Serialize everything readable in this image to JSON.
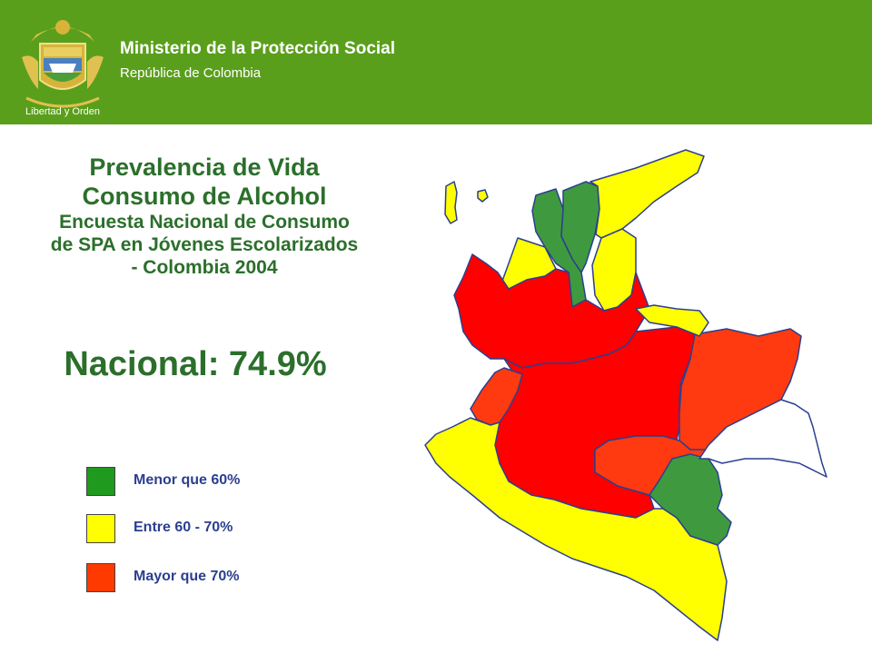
{
  "header": {
    "ministry": "Ministerio de la Protección Social",
    "republic": "República de Colombia",
    "emblem_motto": "Libertad y Orden",
    "background_color": "#5a9f1c"
  },
  "title": {
    "line1": "Prevalencia de Vida",
    "line2": "Consumo de Alcohol",
    "line3": "Encuesta Nacional de Consumo de SPA en Jóvenes Escolarizados - Colombia 2004"
  },
  "national": "Nacional: 74.9%",
  "legend": [
    {
      "label": "Menor que 60%",
      "color": "#1f9a1f"
    },
    {
      "label": "Entre 60 - 70%",
      "color": "#ffff00"
    },
    {
      "label": "Mayor que 70%",
      "color": "#ff3a00"
    }
  ],
  "map": {
    "colors": {
      "low": "#3f9a3f",
      "mid": "#ffff00",
      "high": "#ff0000",
      "high_alt": "#ff3a10",
      "no_data": "#ffffff",
      "border": "#2b3f8f"
    }
  }
}
